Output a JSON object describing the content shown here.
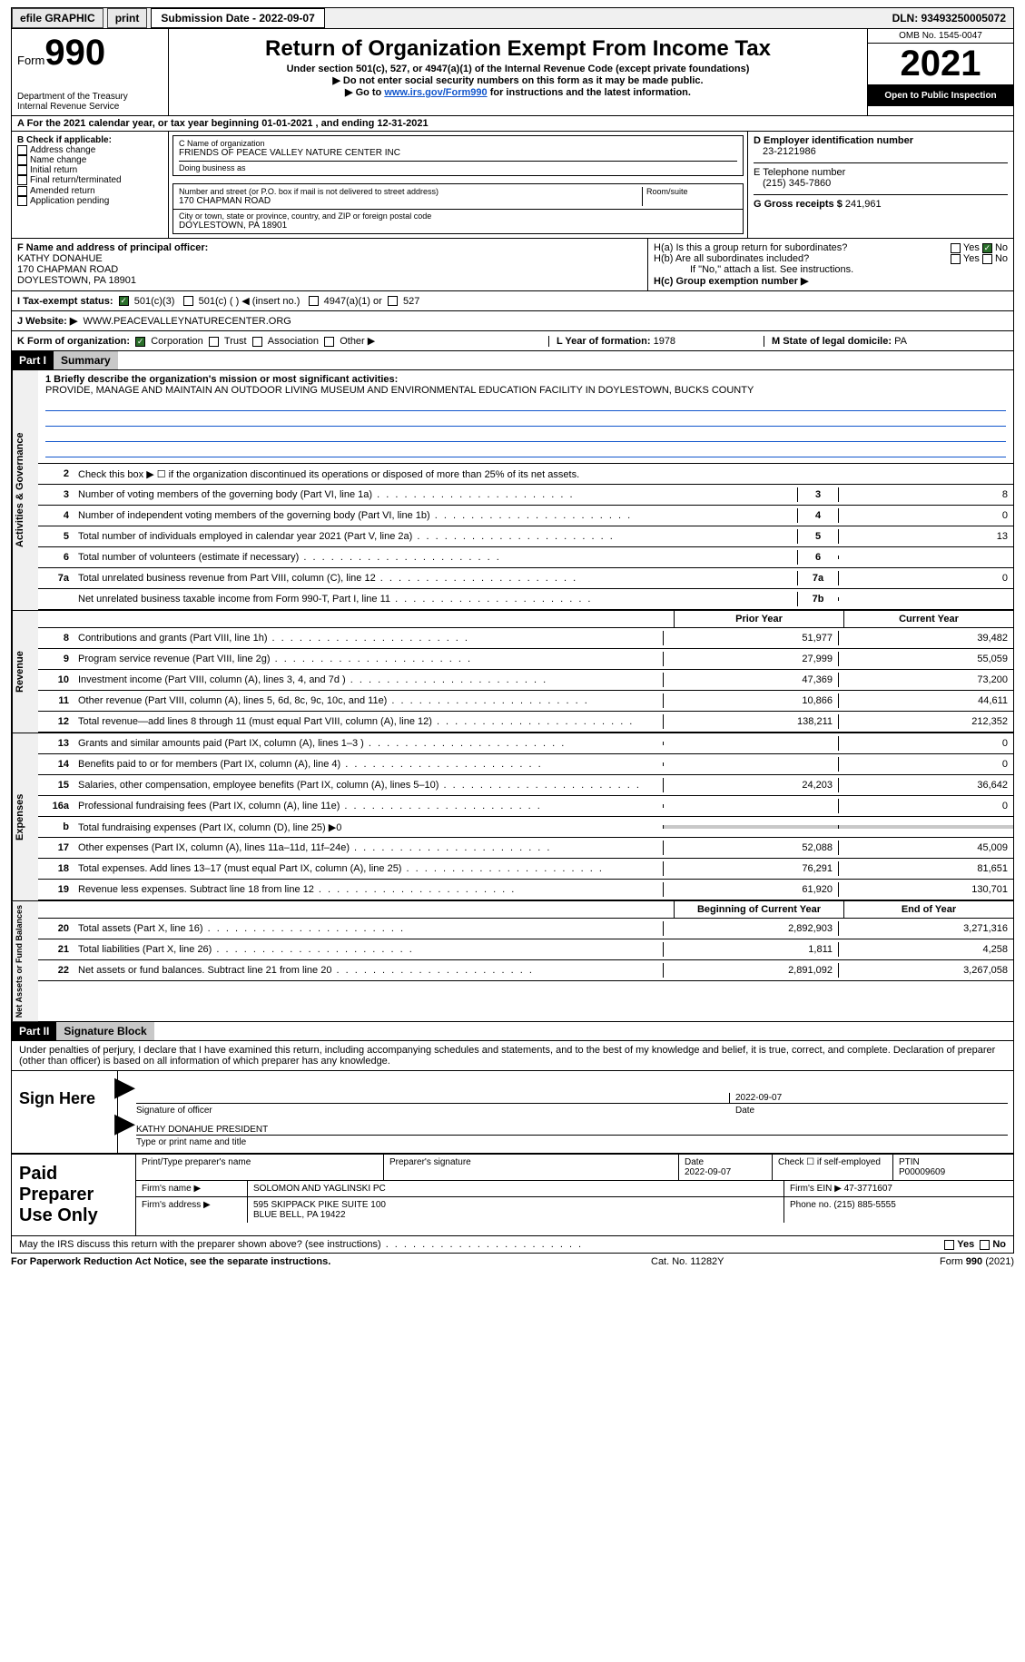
{
  "topbar": {
    "efile": "efile GRAPHIC",
    "print": "print",
    "submission": "Submission Date - 2022-09-07",
    "dln": "DLN: 93493250005072"
  },
  "header": {
    "form_label": "Form",
    "form_number": "990",
    "dept": "Department of the Treasury\nInternal Revenue Service",
    "title": "Return of Organization Exempt From Income Tax",
    "subtitle": "Under section 501(c), 527, or 4947(a)(1) of the Internal Revenue Code (except private foundations)",
    "note1": "Do not enter social security numbers on this form as it may be made public.",
    "note2_pre": "Go to ",
    "note2_link": "www.irs.gov/Form990",
    "note2_post": " for instructions and the latest information.",
    "omb": "OMB No. 1545-0047",
    "year": "2021",
    "open": "Open to Public Inspection"
  },
  "rowA": "A For the 2021 calendar year, or tax year beginning 01-01-2021   , and ending 12-31-2021",
  "colB": {
    "title": "B Check if applicable:",
    "items": [
      "Address change",
      "Name change",
      "Initial return",
      "Final return/terminated",
      "Amended return",
      "Application pending"
    ]
  },
  "colC": {
    "name_lbl": "C Name of organization",
    "name": "FRIENDS OF PEACE VALLEY NATURE CENTER INC",
    "dba": "Doing business as",
    "addr_lbl": "Number and street (or P.O. box if mail is not delivered to street address)",
    "addr": "170 CHAPMAN ROAD",
    "room": "Room/suite",
    "city_lbl": "City or town, state or province, country, and ZIP or foreign postal code",
    "city": "DOYLESTOWN, PA  18901"
  },
  "colD": {
    "ein_lbl": "D Employer identification number",
    "ein": "23-2121986",
    "tel_lbl": "E Telephone number",
    "tel": "(215) 345-7860",
    "gross_lbl": "G Gross receipts $",
    "gross": "241,961"
  },
  "colF": {
    "lbl": "F Name and address of principal officer:",
    "name": "KATHY DONAHUE",
    "addr1": "170 CHAPMAN ROAD",
    "addr2": "DOYLESTOWN, PA  18901"
  },
  "colH": {
    "a": "H(a)  Is this a group return for subordinates?",
    "b": "H(b)  Are all subordinates included?",
    "note": "If \"No,\" attach a list. See instructions.",
    "c": "H(c)  Group exemption number ▶",
    "yes": "Yes",
    "no": "No"
  },
  "rowI": {
    "lbl": "I   Tax-exempt status:",
    "opts": [
      "501(c)(3)",
      "501(c) (  ) ◀ (insert no.)",
      "4947(a)(1) or",
      "527"
    ]
  },
  "rowJ": {
    "lbl": "J   Website: ▶",
    "val": "WWW.PEACEVALLEYNATURECENTER.ORG"
  },
  "rowK": {
    "lbl": "K Form of organization:",
    "opts": [
      "Corporation",
      "Trust",
      "Association",
      "Other ▶"
    ],
    "yof_lbl": "L Year of formation:",
    "yof": "1978",
    "state_lbl": "M State of legal domicile:",
    "state": "PA"
  },
  "part1": {
    "hdr": "Part I",
    "title": "Summary",
    "vtabs": [
      "Activities & Governance",
      "Revenue",
      "Expenses",
      "Net Assets or Fund Balances"
    ],
    "l1_lbl": "1   Briefly describe the organization's mission or most significant activities:",
    "l1_val": "PROVIDE, MANAGE AND MAINTAIN AN OUTDOOR LIVING MUSEUM AND ENVIRONMENTAL EDUCATION FACILITY IN DOYLESTOWN, BUCKS COUNTY",
    "l2": "Check this box ▶ ☐  if the organization discontinued its operations or disposed of more than 25% of its net assets.",
    "lines_gov": [
      {
        "n": "3",
        "d": "Number of voting members of the governing body (Part VI, line 1a)",
        "c": "3",
        "v": "8"
      },
      {
        "n": "4",
        "d": "Number of independent voting members of the governing body (Part VI, line 1b)",
        "c": "4",
        "v": "0"
      },
      {
        "n": "5",
        "d": "Total number of individuals employed in calendar year 2021 (Part V, line 2a)",
        "c": "5",
        "v": "13"
      },
      {
        "n": "6",
        "d": "Total number of volunteers (estimate if necessary)",
        "c": "6",
        "v": ""
      },
      {
        "n": "7a",
        "d": "Total unrelated business revenue from Part VIII, column (C), line 12",
        "c": "7a",
        "v": "0"
      },
      {
        "n": "",
        "d": "Net unrelated business taxable income from Form 990-T, Part I, line 11",
        "c": "7b",
        "v": ""
      }
    ],
    "prior": "Prior Year",
    "current": "Current Year",
    "lines_rev": [
      {
        "n": "8",
        "d": "Contributions and grants (Part VIII, line 1h)",
        "p": "51,977",
        "c": "39,482"
      },
      {
        "n": "9",
        "d": "Program service revenue (Part VIII, line 2g)",
        "p": "27,999",
        "c": "55,059"
      },
      {
        "n": "10",
        "d": "Investment income (Part VIII, column (A), lines 3, 4, and 7d )",
        "p": "47,369",
        "c": "73,200"
      },
      {
        "n": "11",
        "d": "Other revenue (Part VIII, column (A), lines 5, 6d, 8c, 9c, 10c, and 11e)",
        "p": "10,866",
        "c": "44,611"
      },
      {
        "n": "12",
        "d": "Total revenue—add lines 8 through 11 (must equal Part VIII, column (A), line 12)",
        "p": "138,211",
        "c": "212,352"
      }
    ],
    "lines_exp": [
      {
        "n": "13",
        "d": "Grants and similar amounts paid (Part IX, column (A), lines 1–3 )",
        "p": "",
        "c": "0"
      },
      {
        "n": "14",
        "d": "Benefits paid to or for members (Part IX, column (A), line 4)",
        "p": "",
        "c": "0"
      },
      {
        "n": "15",
        "d": "Salaries, other compensation, employee benefits (Part IX, column (A), lines 5–10)",
        "p": "24,203",
        "c": "36,642"
      },
      {
        "n": "16a",
        "d": "Professional fundraising fees (Part IX, column (A), line 11e)",
        "p": "",
        "c": "0"
      },
      {
        "n": "b",
        "d": "Total fundraising expenses (Part IX, column (D), line 25) ▶0",
        "grey": true
      },
      {
        "n": "17",
        "d": "Other expenses (Part IX, column (A), lines 11a–11d, 11f–24e)",
        "p": "52,088",
        "c": "45,009"
      },
      {
        "n": "18",
        "d": "Total expenses. Add lines 13–17 (must equal Part IX, column (A), line 25)",
        "p": "76,291",
        "c": "81,651"
      },
      {
        "n": "19",
        "d": "Revenue less expenses. Subtract line 18 from line 12",
        "p": "61,920",
        "c": "130,701"
      }
    ],
    "beg": "Beginning of Current Year",
    "end": "End of Year",
    "lines_net": [
      {
        "n": "20",
        "d": "Total assets (Part X, line 16)",
        "p": "2,892,903",
        "c": "3,271,316"
      },
      {
        "n": "21",
        "d": "Total liabilities (Part X, line 26)",
        "p": "1,811",
        "c": "4,258"
      },
      {
        "n": "22",
        "d": "Net assets or fund balances. Subtract line 21 from line 20",
        "p": "2,891,092",
        "c": "3,267,058"
      }
    ]
  },
  "part2": {
    "hdr": "Part II",
    "title": "Signature Block",
    "decl": "Under penalties of perjury, I declare that I have examined this return, including accompanying schedules and statements, and to the best of my knowledge and belief, it is true, correct, and complete. Declaration of preparer (other than officer) is based on all information of which preparer has any knowledge.",
    "sign_here": "Sign Here",
    "sig_officer": "Signature of officer",
    "sig_date": "2022-09-07",
    "date_lbl": "Date",
    "officer_name": "KATHY DONAHUE  PRESIDENT",
    "type_lbl": "Type or print name and title",
    "paid": "Paid Preparer Use Only",
    "prep_name_lbl": "Print/Type preparer's name",
    "prep_sig_lbl": "Preparer's signature",
    "prep_date": "2022-09-07",
    "check_self": "Check ☐ if self-employed",
    "ptin_lbl": "PTIN",
    "ptin": "P00009609",
    "firm_name_lbl": "Firm's name    ▶",
    "firm_name": "SOLOMON AND YAGLINSKI PC",
    "firm_ein_lbl": "Firm's EIN ▶",
    "firm_ein": "47-3771607",
    "firm_addr_lbl": "Firm's address ▶",
    "firm_addr1": "595 SKIPPACK PIKE SUITE 100",
    "firm_addr2": "BLUE BELL, PA  19422",
    "phone_lbl": "Phone no.",
    "phone": "(215) 885-5555",
    "discuss": "May the IRS discuss this return with the preparer shown above? (see instructions)",
    "yes": "Yes",
    "no": "No"
  },
  "footer": {
    "l": "For Paperwork Reduction Act Notice, see the separate instructions.",
    "m": "Cat. No. 11282Y",
    "r": "Form 990 (2021)"
  }
}
